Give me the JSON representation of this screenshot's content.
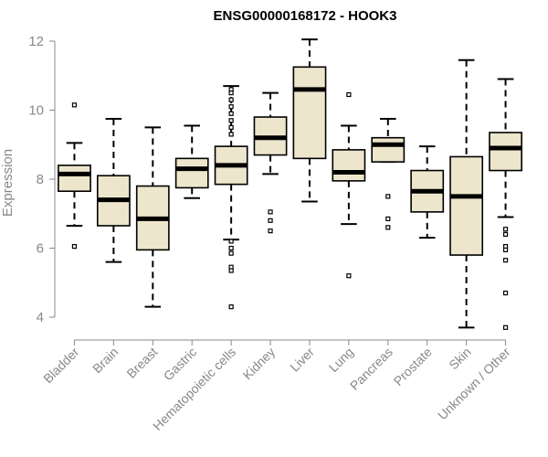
{
  "chart_data": {
    "type": "boxplot",
    "title": "ENSG00000168172 - HOOK3",
    "xlabel": "",
    "ylabel": "Expression",
    "ylim": [
      3.5,
      12.2
    ],
    "yticks": [
      4,
      6,
      8,
      10,
      12
    ],
    "grid": false,
    "legend": "none",
    "box_fill": "#ede6cc",
    "categories": [
      "Bladder",
      "Brain",
      "Breast",
      "Gastric",
      "Hematopoietic cells",
      "Kidney",
      "Liver",
      "Lung",
      "Pancreas",
      "Prostate",
      "Skin",
      "Unknown / Other"
    ],
    "boxes": [
      {
        "label": "Bladder",
        "whisker_low": 6.65,
        "q1": 7.65,
        "median": 8.15,
        "q3": 8.4,
        "whisker_high": 9.05,
        "outliers": [
          10.15,
          6.05
        ]
      },
      {
        "label": "Brain",
        "whisker_low": 5.6,
        "q1": 6.65,
        "median": 7.4,
        "q3": 8.1,
        "whisker_high": 9.75,
        "outliers": []
      },
      {
        "label": "Breast",
        "whisker_low": 4.3,
        "q1": 5.95,
        "median": 6.85,
        "q3": 7.8,
        "whisker_high": 9.5,
        "outliers": []
      },
      {
        "label": "Gastric",
        "whisker_low": 7.45,
        "q1": 7.75,
        "median": 8.3,
        "q3": 8.6,
        "whisker_high": 9.55,
        "outliers": []
      },
      {
        "label": "Hematopoietic cells",
        "whisker_low": 6.25,
        "q1": 7.85,
        "median": 8.4,
        "q3": 8.95,
        "whisker_high": 10.7,
        "outliers": [
          10.6,
          10.5,
          10.3,
          10.1,
          9.9,
          9.7,
          9.5,
          9.3,
          6.2,
          6.0,
          5.85,
          5.45,
          5.35,
          4.3
        ]
      },
      {
        "label": "Kidney",
        "whisker_low": 8.15,
        "q1": 8.7,
        "median": 9.2,
        "q3": 9.8,
        "whisker_high": 10.5,
        "outliers": [
          7.05,
          6.8,
          6.5
        ]
      },
      {
        "label": "Liver",
        "whisker_low": 7.35,
        "q1": 8.6,
        "median": 10.6,
        "q3": 11.25,
        "whisker_high": 12.05,
        "outliers": []
      },
      {
        "label": "Lung",
        "whisker_low": 6.7,
        "q1": 7.95,
        "median": 8.2,
        "q3": 8.85,
        "whisker_high": 9.55,
        "outliers": [
          10.45,
          5.2
        ]
      },
      {
        "label": "Pancreas",
        "whisker_low": 8.5,
        "q1": 8.5,
        "median": 9.0,
        "q3": 9.2,
        "whisker_high": 9.75,
        "outliers": [
          7.5,
          6.85,
          6.6
        ]
      },
      {
        "label": "Prostate",
        "whisker_low": 6.3,
        "q1": 7.05,
        "median": 7.65,
        "q3": 8.25,
        "whisker_high": 8.95,
        "outliers": []
      },
      {
        "label": "Skin",
        "whisker_low": 3.7,
        "q1": 5.8,
        "median": 7.5,
        "q3": 8.65,
        "whisker_high": 11.45,
        "outliers": []
      },
      {
        "label": "Unknown / Other",
        "whisker_low": 6.9,
        "q1": 8.25,
        "median": 8.9,
        "q3": 9.35,
        "whisker_high": 10.9,
        "outliers": [
          6.55,
          6.4,
          6.05,
          5.95,
          5.65,
          4.7,
          3.7
        ]
      }
    ]
  }
}
